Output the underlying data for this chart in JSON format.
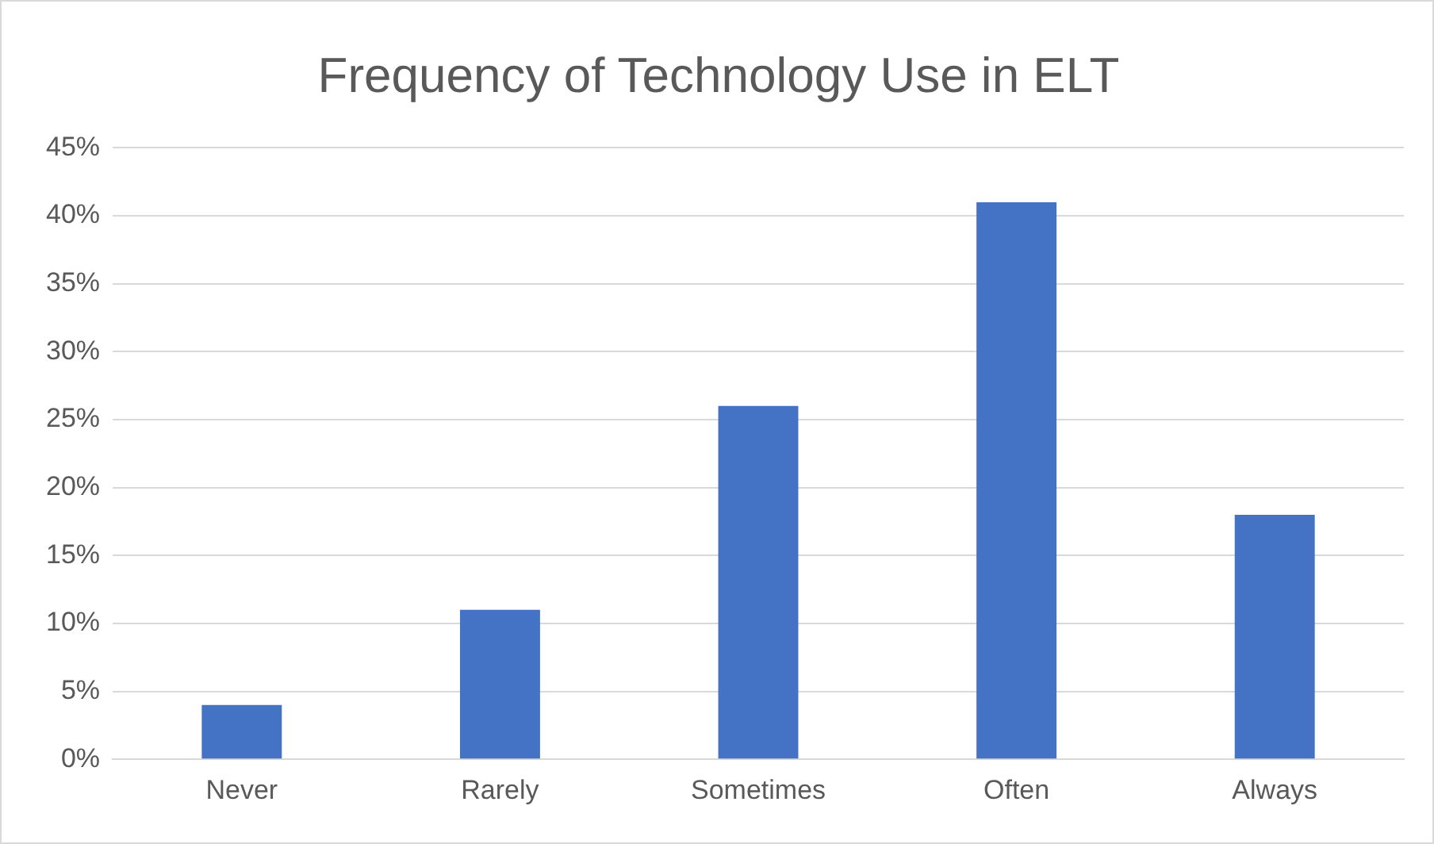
{
  "chart_data": {
    "type": "bar",
    "title": "Frequency of Technology Use in ELT",
    "categories": [
      "Never",
      "Rarely",
      "Sometimes",
      "Often",
      "Always"
    ],
    "values": [
      4,
      11,
      26,
      41,
      18
    ],
    "color": "#4472c4",
    "ylim": [
      0,
      45
    ],
    "yticks": [
      {
        "value": 0,
        "label": "0%"
      },
      {
        "value": 5,
        "label": "5%"
      },
      {
        "value": 10,
        "label": "10%"
      },
      {
        "value": 15,
        "label": "15%"
      },
      {
        "value": 20,
        "label": "20%"
      },
      {
        "value": 25,
        "label": "25%"
      },
      {
        "value": 30,
        "label": "30%"
      },
      {
        "value": 35,
        "label": "35%"
      },
      {
        "value": 40,
        "label": "40%"
      },
      {
        "value": 45,
        "label": "45%"
      }
    ],
    "grid": "y",
    "legend": false
  }
}
